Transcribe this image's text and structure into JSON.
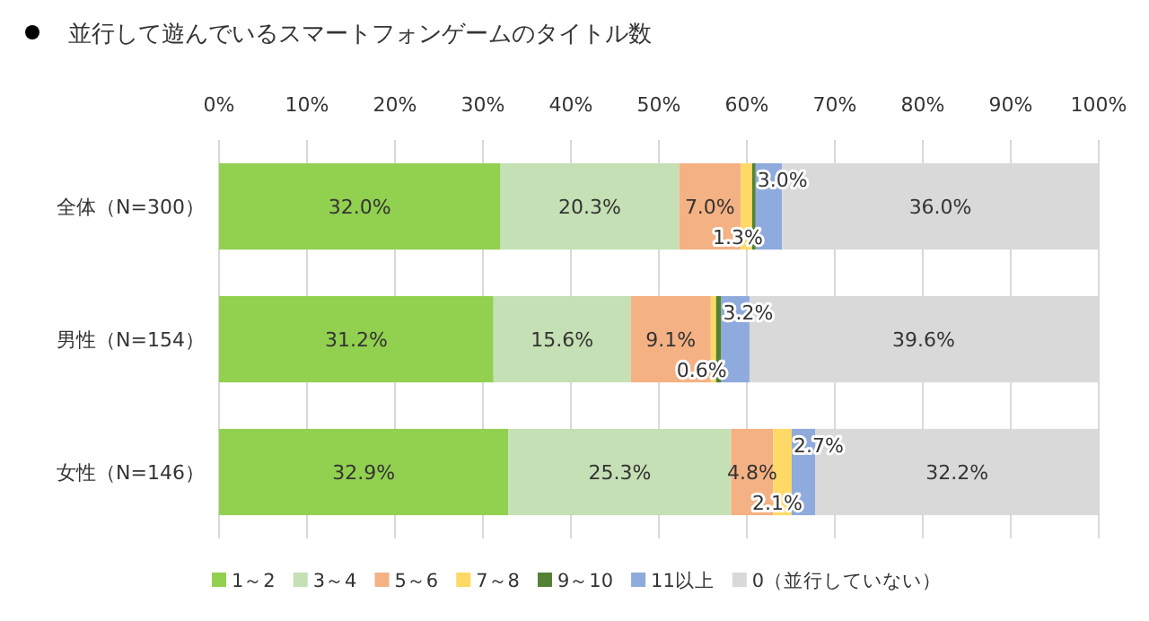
{
  "chart_data": {
    "type": "bar",
    "orientation": "horizontal",
    "stacked": true,
    "title": "並行して遊んでいるスマートフォンゲームのタイトル数",
    "categories": [
      "全体（N=300）",
      "男性（N=154）",
      "女性（N=146）"
    ],
    "xlim": [
      0,
      100
    ],
    "xticks": [
      {
        "value": 0,
        "label": "0%"
      },
      {
        "value": 10,
        "label": "10%"
      },
      {
        "value": 20,
        "label": "20%"
      },
      {
        "value": 30,
        "label": "30%"
      },
      {
        "value": 40,
        "label": "40%"
      },
      {
        "value": 50,
        "label": "50%"
      },
      {
        "value": 60,
        "label": "60%"
      },
      {
        "value": 70,
        "label": "70%"
      },
      {
        "value": 80,
        "label": "80%"
      },
      {
        "value": 90,
        "label": "90%"
      },
      {
        "value": 100,
        "label": "100%"
      }
    ],
    "grid": "x",
    "legend": "bottom",
    "series": [
      {
        "name": "1～2",
        "color": "#92d050",
        "values": [
          32.0,
          31.2,
          32.9
        ],
        "value_labels": [
          "32.0%",
          "31.2%",
          "32.9%"
        ]
      },
      {
        "name": "3～4",
        "color": "#c5e0b4",
        "values": [
          20.3,
          15.6,
          25.3
        ],
        "value_labels": [
          "20.3%",
          "15.6%",
          "25.3%"
        ]
      },
      {
        "name": "5～6",
        "color": "#f4b183",
        "values": [
          7.0,
          9.1,
          4.8
        ],
        "value_labels": [
          "7.0%",
          "9.1%",
          "4.8%"
        ]
      },
      {
        "name": "7～8",
        "color": "#ffd966",
        "values": [
          1.3,
          0.6,
          2.1
        ],
        "value_labels": [
          "1.3%",
          "0.6%",
          "2.1%"
        ]
      },
      {
        "name": "9～10",
        "color": "#548235",
        "values": [
          0.4,
          0.6,
          0
        ],
        "value_labels": [
          null,
          null,
          null
        ]
      },
      {
        "name": "11以上",
        "color": "#8faadc",
        "values": [
          3.0,
          3.2,
          2.7
        ],
        "value_labels": [
          "3.0%",
          "3.2%",
          "2.7%"
        ]
      },
      {
        "name": "0（並行していない）",
        "color": "#d9d9d9",
        "values": [
          36.0,
          39.6,
          32.2
        ],
        "value_labels": [
          "36.0%",
          "39.6%",
          "32.2%"
        ]
      }
    ]
  }
}
